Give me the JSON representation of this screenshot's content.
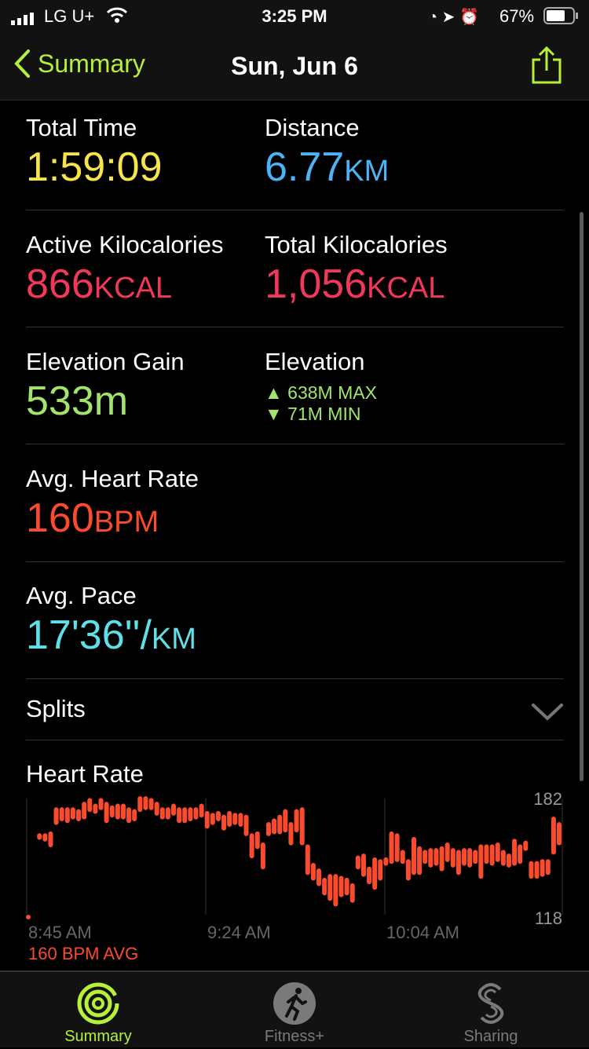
{
  "status": {
    "carrier": "LG U+",
    "time": "3:25 PM",
    "battery": "67%"
  },
  "nav": {
    "back_label": "Summary",
    "title": "Sun, Jun 6"
  },
  "metrics": {
    "total_time": {
      "label": "Total Time",
      "value": "1:59:09",
      "color": "#f7e34a"
    },
    "distance": {
      "label": "Distance",
      "value": "6.77",
      "unit": "KM",
      "color": "#4ab4f5"
    },
    "active_kcal": {
      "label": "Active Kilocalories",
      "value": "866",
      "unit": "KCAL",
      "color": "#f2375b"
    },
    "total_kcal": {
      "label": "Total Kilocalories",
      "value": "1,056",
      "unit": "KCAL",
      "color": "#f2375b"
    },
    "elevation_gain": {
      "label": "Elevation Gain",
      "value": "533m",
      "color": "#a3e46b"
    },
    "elevation": {
      "label": "Elevation",
      "max": "▲ 638M MAX",
      "min": "▼ 71M MIN"
    },
    "avg_hr": {
      "label": "Avg. Heart Rate",
      "value": "160",
      "unit": "BPM",
      "color": "#fa4b2c"
    },
    "avg_pace": {
      "label": "Avg. Pace",
      "value": "17'36''/",
      "unit": "KM",
      "color": "#5ee0e8"
    }
  },
  "splits": {
    "label": "Splits"
  },
  "heart_rate": {
    "label": "Heart Rate",
    "avg_label": "160 BPM AVG"
  },
  "chart_data": {
    "type": "bar",
    "subtype": "range",
    "color": "#fa4b2c",
    "ylim": [
      118,
      182
    ],
    "y_ticks": [
      "182",
      "118"
    ],
    "x_ticks": [
      "8:45 AM",
      "9:24 AM",
      "10:04 AM"
    ],
    "ranges": [
      [
        118,
        118
      ],
      null,
      [
        161,
        162
      ],
      [
        160,
        162
      ],
      [
        157,
        163
      ],
      [
        169,
        176
      ],
      [
        171,
        176
      ],
      [
        170,
        176
      ],
      [
        172,
        176
      ],
      [
        171,
        175
      ],
      [
        172,
        179
      ],
      [
        176,
        181
      ],
      [
        175,
        178
      ],
      [
        177,
        181
      ],
      [
        170,
        179
      ],
      [
        173,
        177
      ],
      [
        172,
        178
      ],
      [
        172,
        178
      ],
      [
        170,
        176
      ],
      [
        171,
        175
      ],
      [
        176,
        182
      ],
      [
        177,
        182
      ],
      [
        177,
        181
      ],
      [
        174,
        179
      ],
      [
        172,
        176
      ],
      [
        172,
        176
      ],
      [
        174,
        178
      ],
      [
        170,
        176
      ],
      [
        170,
        176
      ],
      [
        171,
        176
      ],
      [
        172,
        176
      ],
      [
        173,
        178
      ],
      [
        167,
        174
      ],
      [
        169,
        173
      ],
      [
        171,
        174
      ],
      [
        166,
        172
      ],
      [
        168,
        174
      ],
      [
        169,
        173
      ],
      [
        168,
        173
      ],
      [
        163,
        172
      ],
      [
        151,
        162
      ],
      [
        156,
        163
      ],
      [
        145,
        157
      ],
      [
        163,
        168
      ],
      [
        164,
        170
      ],
      [
        164,
        172
      ],
      [
        165,
        175
      ],
      [
        158,
        168
      ],
      [
        165,
        175
      ],
      [
        158,
        176
      ],
      [
        142,
        156
      ],
      [
        139,
        146
      ],
      [
        136,
        143
      ],
      [
        131,
        138
      ],
      [
        128,
        140
      ],
      [
        125,
        140
      ],
      [
        130,
        139
      ],
      [
        131,
        138
      ],
      [
        127,
        135
      ],
      [
        145,
        150
      ],
      [
        141,
        151
      ],
      [
        137,
        144
      ],
      [
        134,
        149
      ],
      [
        139,
        148
      ],
      [
        147,
        149
      ],
      [
        148,
        163
      ],
      [
        149,
        162
      ],
      [
        148,
        153
      ],
      [
        139,
        148
      ],
      [
        142,
        160
      ],
      [
        142,
        155
      ],
      [
        148,
        153
      ],
      [
        146,
        154
      ],
      [
        147,
        154
      ],
      [
        144,
        155
      ],
      [
        149,
        157
      ],
      [
        146,
        154
      ],
      [
        142,
        153
      ],
      [
        147,
        154
      ],
      [
        146,
        154
      ],
      [
        148,
        153
      ],
      [
        140,
        156
      ],
      [
        148,
        156
      ],
      [
        147,
        156
      ],
      [
        149,
        157
      ],
      [
        147,
        153
      ],
      [
        146,
        151
      ],
      [
        147,
        159
      ],
      [
        148,
        156
      ],
      [
        155,
        158
      ],
      [
        140,
        147
      ],
      [
        140,
        147
      ],
      [
        141,
        148
      ],
      [
        142,
        148
      ],
      [
        153,
        171
      ],
      [
        158,
        168
      ]
    ]
  },
  "tabs": [
    {
      "label": "Summary",
      "icon": "activity-rings-icon",
      "active": true
    },
    {
      "label": "Fitness+",
      "icon": "runner-icon"
    },
    {
      "label": "Sharing",
      "icon": "sharing-icon"
    }
  ],
  "accent": "#b6f03b"
}
